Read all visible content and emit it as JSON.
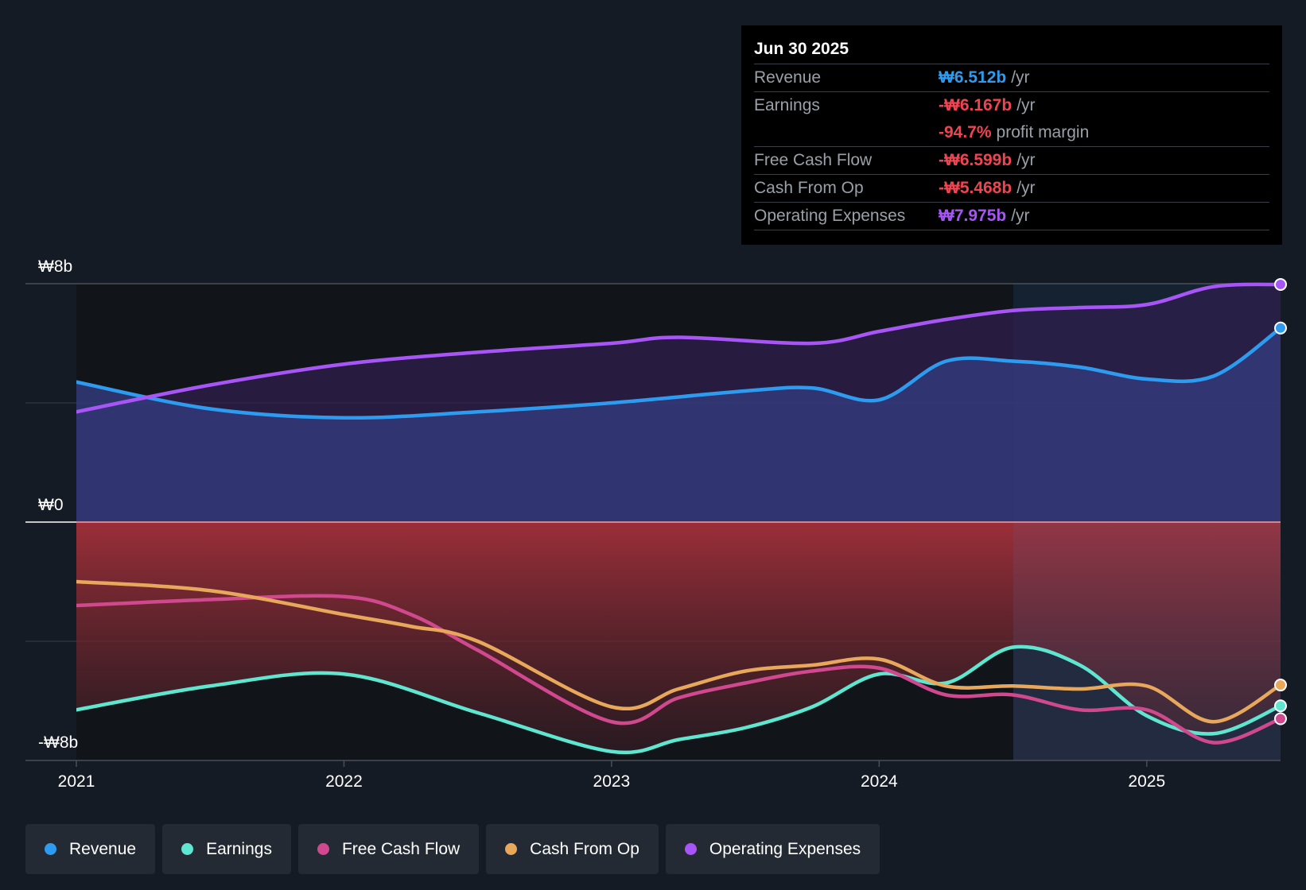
{
  "tooltip": {
    "date": "Jun 30 2025",
    "rows": [
      {
        "label": "Revenue",
        "value": "₩6.512b",
        "unit": "/yr",
        "color": "#2d9cf0"
      },
      {
        "label": "Earnings",
        "value": "-₩6.167b",
        "unit": "/yr",
        "color": "#f04452"
      },
      {
        "label": "",
        "value": "-94.7%",
        "unit": "profit margin",
        "color": "#f04452"
      },
      {
        "label": "Free Cash Flow",
        "value": "-₩6.599b",
        "unit": "/yr",
        "color": "#f04452"
      },
      {
        "label": "Cash From Op",
        "value": "-₩5.468b",
        "unit": "/yr",
        "color": "#f04452"
      },
      {
        "label": "Operating Expenses",
        "value": "₩7.975b",
        "unit": "/yr",
        "color": "#a855f7"
      }
    ]
  },
  "chart_data": {
    "type": "line",
    "y_tick_labels": [
      "₩8b",
      "₩0",
      "-₩8b"
    ],
    "x_tick_labels": [
      "2021",
      "2022",
      "2023",
      "2024",
      "2025"
    ],
    "ylim": [
      -8,
      8
    ],
    "xlim": [
      2021.0,
      2025.5
    ],
    "forecast_start": 2024.5,
    "grid": true,
    "series": [
      {
        "name": "Revenue",
        "color": "#2d9cf0",
        "x": [
          2021.0,
          2021.5,
          2022.0,
          2022.5,
          2023.0,
          2023.5,
          2023.75,
          2024.0,
          2024.25,
          2024.5,
          2024.75,
          2025.0,
          2025.25,
          2025.5
        ],
        "y": [
          4.7,
          3.8,
          3.5,
          3.7,
          4.0,
          4.4,
          4.5,
          4.1,
          5.4,
          5.4,
          5.2,
          4.8,
          4.9,
          6.512
        ]
      },
      {
        "name": "Earnings",
        "color": "#5ee6d0",
        "x": [
          2021.0,
          2021.5,
          2022.0,
          2022.5,
          2023.0,
          2023.25,
          2023.5,
          2023.75,
          2024.0,
          2024.25,
          2024.5,
          2024.75,
          2025.0,
          2025.25,
          2025.5
        ],
        "y": [
          -6.3,
          -5.5,
          -5.1,
          -6.4,
          -7.7,
          -7.3,
          -6.9,
          -6.2,
          -5.1,
          -5.4,
          -4.2,
          -4.8,
          -6.5,
          -7.1,
          -6.167
        ]
      },
      {
        "name": "Free Cash Flow",
        "color": "#d0488e",
        "x": [
          2021.0,
          2021.5,
          2022.0,
          2022.25,
          2022.5,
          2023.0,
          2023.25,
          2023.5,
          2023.75,
          2024.0,
          2024.25,
          2024.5,
          2024.75,
          2025.0,
          2025.25,
          2025.5
        ],
        "y": [
          -2.8,
          -2.6,
          -2.5,
          -3.1,
          -4.3,
          -6.7,
          -5.9,
          -5.4,
          -5.0,
          -4.9,
          -5.8,
          -5.8,
          -6.3,
          -6.3,
          -7.4,
          -6.599
        ]
      },
      {
        "name": "Cash From Op",
        "color": "#e8a85c",
        "x": [
          2021.0,
          2021.5,
          2022.0,
          2022.25,
          2022.5,
          2023.0,
          2023.25,
          2023.5,
          2023.75,
          2024.0,
          2024.25,
          2024.5,
          2024.75,
          2025.0,
          2025.25,
          2025.5
        ],
        "y": [
          -2.0,
          -2.3,
          -3.1,
          -3.5,
          -4.0,
          -6.2,
          -5.6,
          -5.0,
          -4.8,
          -4.6,
          -5.5,
          -5.5,
          -5.6,
          -5.5,
          -6.7,
          -5.468
        ]
      },
      {
        "name": "Operating Expenses",
        "color": "#a855f7",
        "x": [
          2021.0,
          2021.5,
          2022.0,
          2022.5,
          2023.0,
          2023.25,
          2023.75,
          2024.0,
          2024.25,
          2024.5,
          2024.75,
          2025.0,
          2025.25,
          2025.5
        ],
        "y": [
          3.7,
          4.6,
          5.3,
          5.7,
          6.0,
          6.2,
          6.0,
          6.4,
          6.8,
          7.1,
          7.2,
          7.3,
          7.9,
          7.975
        ]
      }
    ]
  },
  "legend": [
    {
      "label": "Revenue",
      "color": "#2d9cf0"
    },
    {
      "label": "Earnings",
      "color": "#5ee6d0"
    },
    {
      "label": "Free Cash Flow",
      "color": "#d0488e"
    },
    {
      "label": "Cash From Op",
      "color": "#e8a85c"
    },
    {
      "label": "Operating Expenses",
      "color": "#a855f7"
    }
  ]
}
